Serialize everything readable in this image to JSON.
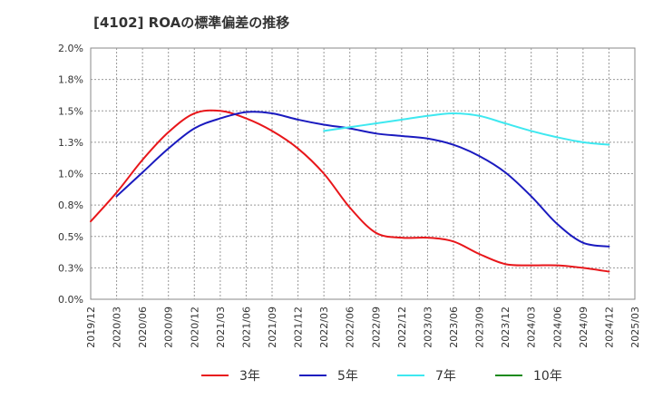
{
  "chart_data": {
    "type": "line",
    "title": "[4102]  ROAの標準偏差の推移",
    "xlabel": "",
    "ylabel": "",
    "x_ticks": [
      "2019/12",
      "2020/03",
      "2020/06",
      "2020/09",
      "2020/12",
      "2021/03",
      "2021/06",
      "2021/09",
      "2021/12",
      "2022/03",
      "2022/06",
      "2022/09",
      "2022/12",
      "2023/03",
      "2023/06",
      "2023/09",
      "2023/12",
      "2024/03",
      "2024/06",
      "2024/09",
      "2024/12",
      "2025/03"
    ],
    "y_ticks": [
      "0.0%",
      "0.3%",
      "0.5%",
      "0.8%",
      "1.0%",
      "1.3%",
      "1.5%",
      "1.8%",
      "2.0%"
    ],
    "ylim": [
      0,
      2.0
    ],
    "grid": true,
    "legend_position": "bottom",
    "series": [
      {
        "name": "3年",
        "color": "#e8161a",
        "x": [
          "2019/12",
          "2020/03",
          "2020/06",
          "2020/09",
          "2020/12",
          "2021/03",
          "2021/06",
          "2021/09",
          "2021/12",
          "2022/03",
          "2022/06",
          "2022/09",
          "2022/12",
          "2023/03",
          "2023/06",
          "2023/09",
          "2023/12",
          "2024/03",
          "2024/06",
          "2024/09",
          "2024/12"
        ],
        "values": [
          0.62,
          0.85,
          1.11,
          1.33,
          1.48,
          1.5,
          1.44,
          1.34,
          1.2,
          1.0,
          0.73,
          0.53,
          0.49,
          0.49,
          0.46,
          0.36,
          0.28,
          0.27,
          0.27,
          0.25,
          0.22
        ]
      },
      {
        "name": "5年",
        "color": "#1a1abf",
        "x": [
          "2020/03",
          "2020/06",
          "2020/09",
          "2020/12",
          "2021/03",
          "2021/06",
          "2021/09",
          "2021/12",
          "2022/03",
          "2022/06",
          "2022/09",
          "2022/12",
          "2023/03",
          "2023/06",
          "2023/09",
          "2023/12",
          "2024/03",
          "2024/06",
          "2024/09",
          "2024/12"
        ],
        "values": [
          0.82,
          1.01,
          1.2,
          1.36,
          1.44,
          1.49,
          1.48,
          1.43,
          1.39,
          1.36,
          1.32,
          1.3,
          1.28,
          1.23,
          1.14,
          1.01,
          0.82,
          0.6,
          0.45,
          0.42
        ]
      },
      {
        "name": "7年",
        "color": "#3ee8f0",
        "x": [
          "2022/03",
          "2022/06",
          "2022/09",
          "2022/12",
          "2023/03",
          "2023/06",
          "2023/09",
          "2023/12",
          "2024/03",
          "2024/06",
          "2024/09",
          "2024/12"
        ],
        "values": [
          1.34,
          1.37,
          1.4,
          1.43,
          1.46,
          1.48,
          1.46,
          1.4,
          1.34,
          1.29,
          1.25,
          1.23
        ]
      },
      {
        "name": "10年",
        "color": "#1a8a1a",
        "x": [],
        "values": []
      }
    ]
  }
}
